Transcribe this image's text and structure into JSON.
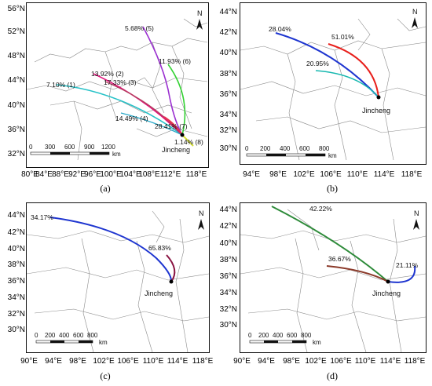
{
  "panels": [
    {
      "id": "a",
      "label": "(a)",
      "y_ticks": [
        "56°N",
        "52°N",
        "48°N",
        "44°N",
        "40°N",
        "36°N",
        "32°N"
      ],
      "x_ticks": [
        "80°E",
        "88°E",
        "96°E",
        "104°E",
        "112°E",
        "118°E"
      ],
      "x_ticks_extra": [
        "84°E",
        "92°E",
        "100°E",
        "108°E"
      ],
      "city": "Jincheng",
      "scale_labels": [
        "0",
        "300",
        "600",
        "900",
        "1200"
      ],
      "scale_unit": "km",
      "clusters": [
        {
          "label": "7.10% (1)",
          "share": 7.1,
          "color": "#27c2c8"
        },
        {
          "label": "13.92% (2)",
          "share": 13.92,
          "color": "#e0127a"
        },
        {
          "label": "17.33% (3)",
          "share": 17.33,
          "color": "#b3405f"
        },
        {
          "label": "14.49% (4)",
          "share": 14.49,
          "color": "#2aa9c9"
        },
        {
          "label": "5.68% (5)",
          "share": 5.68,
          "color": "#9a2fd0"
        },
        {
          "label": "11.93% (6)",
          "share": 11.93,
          "color": "#34d234"
        },
        {
          "label": "28.41% (7)",
          "share": 28.41,
          "color": "#e8324f"
        },
        {
          "label": "1.14% (8)",
          "share": 1.14,
          "color": "#d8e23a"
        }
      ]
    },
    {
      "id": "b",
      "label": "(b)",
      "y_ticks": [
        "44°N",
        "42°N",
        "40°N",
        "38°N",
        "36°N",
        "34°N",
        "32°N",
        "30°N"
      ],
      "x_ticks": [
        "94°E",
        "98°E",
        "102°E",
        "106°E",
        "110°E",
        "114°E",
        "118°E"
      ],
      "city": "Jincheng",
      "scale_labels": [
        "0",
        "200",
        "400",
        "600",
        "800"
      ],
      "scale_unit": "km",
      "clusters": [
        {
          "label": "28.04%",
          "share": 28.04,
          "color": "#1f36d0"
        },
        {
          "label": "51.01%",
          "share": 51.01,
          "color": "#e8201c"
        },
        {
          "label": "20.95%",
          "share": 20.95,
          "color": "#18b8b0"
        }
      ]
    },
    {
      "id": "c",
      "label": "(c)",
      "y_ticks": [
        "44°N",
        "42°N",
        "40°N",
        "38°N",
        "36°N",
        "34°N",
        "32°N",
        "30°N"
      ],
      "x_ticks": [
        "90°E",
        "94°E",
        "98°E",
        "102°E",
        "106°E",
        "110°E",
        "114°E",
        "118°E"
      ],
      "city": "Jincheng",
      "scale_labels": [
        "0",
        "200",
        "400",
        "600",
        "800"
      ],
      "scale_unit": "km",
      "clusters": [
        {
          "label": "34.17%",
          "share": 34.17,
          "color": "#1f36d0"
        },
        {
          "label": "65.83%",
          "share": 65.83,
          "color": "#8a1442"
        }
      ]
    },
    {
      "id": "d",
      "label": "(d)",
      "y_ticks": [
        "44°N",
        "42°N",
        "40°N",
        "38°N",
        "36°N",
        "34°N",
        "32°N",
        "30°N"
      ],
      "x_ticks": [
        "90°E",
        "94°E",
        "98°E",
        "102°E",
        "106°E",
        "110°E",
        "114°E",
        "118°E"
      ],
      "city": "Jincheng",
      "scale_labels": [
        "0",
        "200",
        "400",
        "600",
        "800"
      ],
      "scale_unit": "km",
      "clusters": [
        {
          "label": "42.22%",
          "share": 42.22,
          "color": "#2e8b3a"
        },
        {
          "label": "36.67%",
          "share": 36.67,
          "color": "#8b3a2a"
        },
        {
          "label": "21.11%",
          "share": 21.11,
          "color": "#1f36d0"
        }
      ]
    }
  ],
  "north_symbol": "N"
}
